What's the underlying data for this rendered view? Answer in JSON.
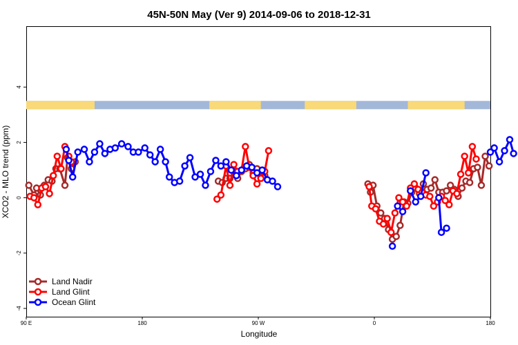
{
  "chart_data": {
    "type": "line",
    "title": "45N-50N May (Ver 9)   2014-09-06 to 2018-12-31",
    "xlabel": "Longitude",
    "ylabel": "XCO2 - MLO trend (ppm)",
    "xlim": [
      90,
      450
    ],
    "ylim": [
      -4.3,
      6.2
    ],
    "x_ticks": [
      {
        "value": 90,
        "label": "90 E"
      },
      {
        "value": 180,
        "label": "180"
      },
      {
        "value": 270,
        "label": "90 W"
      },
      {
        "value": 360,
        "label": "0"
      },
      {
        "value": 450,
        "label": "180"
      }
    ],
    "y_ticks": [
      {
        "value": -4,
        "label": "-4"
      },
      {
        "value": -2,
        "label": "-2"
      },
      {
        "value": 0,
        "label": "0"
      },
      {
        "value": 2,
        "label": "2"
      },
      {
        "value": 4,
        "label": "4"
      }
    ],
    "grid": false,
    "legend_position": "bottom-left",
    "land_ocean_strip": {
      "y_range": [
        3.2,
        3.5
      ],
      "land_color": "#f9d978",
      "ocean_color": "#a3b7d8",
      "land_segments": [
        [
          90,
          143
        ],
        [
          232,
          272
        ],
        [
          306,
          346
        ],
        [
          386,
          430
        ]
      ]
    },
    "series": [
      {
        "name": "Land Nadir",
        "color": "#a52a2a",
        "segments": [
          [
            [
              92,
              0.45
            ],
            [
              96,
              0.1
            ],
            [
              98,
              0.35
            ],
            [
              101,
              0.1
            ],
            [
              104,
              0.45
            ],
            [
              107,
              0.65
            ],
            [
              110,
              0.6
            ],
            [
              113,
              1.05
            ],
            [
              116,
              1.05
            ],
            [
              120,
              0.45
            ],
            [
              122,
              1.45
            ],
            [
              125,
              1.05
            ],
            [
              128,
              1.3
            ]
          ],
          [
            [
              239,
              0.6
            ],
            [
              242,
              0.55
            ],
            [
              245,
              0.7
            ],
            [
              248,
              0.7
            ],
            [
              251,
              0.95
            ],
            [
              254,
              0.7
            ],
            [
              257,
              0.95
            ],
            [
              260,
              1.05
            ],
            [
              263,
              1.2
            ],
            [
              266,
              0.9
            ],
            [
              269,
              1.05
            ],
            [
              272,
              0.75
            ],
            [
              275,
              0.8
            ]
          ],
          [
            [
              355,
              0.5
            ],
            [
              357,
              0.2
            ],
            [
              359,
              0.45
            ],
            [
              362,
              -0.3
            ],
            [
              365,
              -0.55
            ],
            [
              368,
              -0.75
            ],
            [
              371,
              -1.15
            ],
            [
              374,
              -1.5
            ],
            [
              377,
              -1.4
            ],
            [
              380,
              -1.0
            ],
            [
              383,
              -0.15
            ],
            [
              386,
              -0.2
            ],
            [
              389,
              0.2
            ],
            [
              392,
              0.35
            ],
            [
              395,
              0.15
            ],
            [
              398,
              0.5
            ],
            [
              401,
              0.3
            ],
            [
              404,
              0.35
            ],
            [
              407,
              0.65
            ],
            [
              410,
              0.2
            ],
            [
              413,
              0.2
            ],
            [
              416,
              0.25
            ],
            [
              419,
              0.45
            ],
            [
              422,
              0.3
            ],
            [
              425,
              0.05
            ],
            [
              428,
              0.35
            ],
            [
              431,
              0.6
            ],
            [
              434,
              0.55
            ],
            [
              437,
              1.05
            ],
            [
              440,
              1.1
            ],
            [
              443,
              0.45
            ],
            [
              446,
              1.5
            ],
            [
              449,
              1.15
            ]
          ]
        ]
      },
      {
        "name": "Land Glint",
        "color": "#ff0000",
        "segments": [
          [
            [
              93,
              0.05
            ],
            [
              96,
              0.0
            ],
            [
              99,
              -0.25
            ],
            [
              102,
              0.35
            ],
            [
              105,
              0.4
            ],
            [
              108,
              0.15
            ],
            [
              111,
              0.8
            ],
            [
              114,
              1.5
            ],
            [
              117,
              1.05
            ],
            [
              120,
              1.85
            ],
            [
              123,
              1.5
            ],
            [
              125,
              1.3
            ]
          ],
          [
            [
              238,
              -0.05
            ],
            [
              241,
              0.1
            ],
            [
              245,
              1.15
            ],
            [
              248,
              0.45
            ],
            [
              251,
              1.2
            ],
            [
              254,
              0.95
            ],
            [
              257,
              1.0
            ],
            [
              260,
              1.85
            ],
            [
              263,
              1.1
            ],
            [
              266,
              0.8
            ],
            [
              269,
              0.5
            ],
            [
              272,
              0.7
            ],
            [
              275,
              0.95
            ],
            [
              278,
              1.7
            ]
          ],
          [
            [
              356,
              0.4
            ],
            [
              358,
              -0.3
            ],
            [
              361,
              -0.4
            ],
            [
              364,
              -0.85
            ],
            [
              367,
              -0.95
            ],
            [
              370,
              -0.75
            ],
            [
              373,
              -1.25
            ],
            [
              376,
              -0.55
            ],
            [
              379,
              0.0
            ],
            [
              382,
              -0.15
            ],
            [
              385,
              -0.3
            ],
            [
              388,
              0.35
            ],
            [
              391,
              0.5
            ],
            [
              394,
              0.3
            ],
            [
              397,
              0.2
            ],
            [
              400,
              0.1
            ],
            [
              403,
              0.05
            ],
            [
              406,
              -0.3
            ],
            [
              409,
              -0.15
            ],
            [
              412,
              0.05
            ],
            [
              415,
              -0.1
            ],
            [
              418,
              -0.25
            ],
            [
              421,
              0.25
            ],
            [
              424,
              0.15
            ],
            [
              427,
              0.85
            ],
            [
              430,
              1.5
            ],
            [
              433,
              0.9
            ],
            [
              436,
              1.85
            ],
            [
              439,
              1.4
            ]
          ]
        ]
      },
      {
        "name": "Ocean Glint",
        "color": "#0000ff",
        "segments": [
          [
            [
              121,
              1.75
            ],
            [
              123,
              1.35
            ],
            [
              126,
              0.75
            ],
            [
              130,
              1.65
            ],
            [
              135,
              1.75
            ],
            [
              139,
              1.3
            ],
            [
              143,
              1.65
            ],
            [
              147,
              1.95
            ],
            [
              151,
              1.6
            ],
            [
              155,
              1.75
            ],
            [
              159,
              1.8
            ],
            [
              164,
              1.95
            ],
            [
              169,
              1.85
            ],
            [
              173,
              1.65
            ],
            [
              177,
              1.65
            ],
            [
              182,
              1.8
            ],
            [
              186,
              1.55
            ],
            [
              190,
              1.3
            ],
            [
              194,
              1.75
            ],
            [
              198,
              1.3
            ],
            [
              201,
              0.75
            ],
            [
              205,
              0.55
            ],
            [
              209,
              0.6
            ],
            [
              213,
              1.15
            ],
            [
              217,
              1.45
            ],
            [
              221,
              0.75
            ],
            [
              225,
              0.85
            ],
            [
              229,
              0.45
            ],
            [
              233,
              0.95
            ],
            [
              237,
              1.35
            ],
            [
              241,
              1.15
            ],
            [
              245,
              1.3
            ],
            [
              249,
              1.0
            ],
            [
              253,
              0.8
            ],
            [
              257,
              1.0
            ],
            [
              261,
              1.15
            ],
            [
              265,
              1.1
            ],
            [
              269,
              0.9
            ],
            [
              273,
              1.0
            ],
            [
              277,
              0.65
            ],
            [
              281,
              0.6
            ],
            [
              285,
              0.4
            ]
          ],
          [
            [
              374,
              -1.75
            ]
          ],
          [
            [
              378,
              -0.3
            ],
            [
              382,
              -0.5
            ]
          ],
          [
            [
              388,
              0.25
            ],
            [
              392,
              -0.15
            ],
            [
              396,
              0.05
            ],
            [
              400,
              0.9
            ]
          ],
          [
            [
              410,
              0.0
            ],
            [
              412,
              -1.25
            ],
            [
              416,
              -1.1
            ]
          ],
          [
            [
              450,
              1.65
            ],
            [
              453,
              1.8
            ],
            [
              457,
              1.3
            ],
            [
              461,
              1.7
            ],
            [
              465,
              2.1
            ],
            [
              468,
              1.6
            ]
          ]
        ]
      }
    ]
  }
}
